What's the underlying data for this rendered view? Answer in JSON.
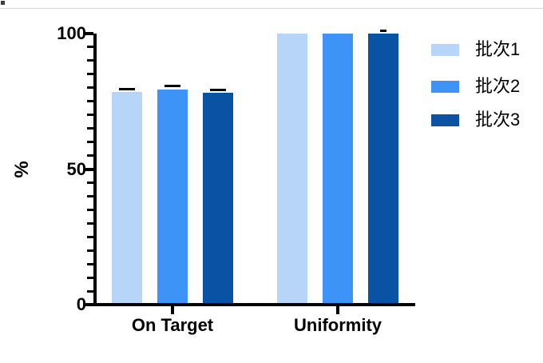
{
  "chart_data": {
    "type": "bar",
    "categories": [
      "On Target",
      "Uniformity"
    ],
    "series": [
      {
        "name": "批次1",
        "color": "#B7D5F8",
        "values": [
          78.4,
          100
        ],
        "errors": [
          0.8,
          0
        ]
      },
      {
        "name": "批次2",
        "color": "#3E94F6",
        "values": [
          79.4,
          100
        ],
        "errors": [
          0.7,
          0
        ]
      },
      {
        "name": "批次3",
        "color": "#0A52A3",
        "values": [
          78.1,
          100
        ],
        "errors": [
          0.7,
          0.5
        ]
      }
    ],
    "ylabel": "%",
    "xlabel": "",
    "ylim": [
      0,
      100
    ],
    "yticks_major": [
      0,
      50,
      100
    ],
    "ytick_minor_step": 5,
    "grid": false,
    "legend_position": "right",
    "axis_color": "#000000",
    "error_bar_color": "#000000",
    "background_color": "#ffffff"
  }
}
